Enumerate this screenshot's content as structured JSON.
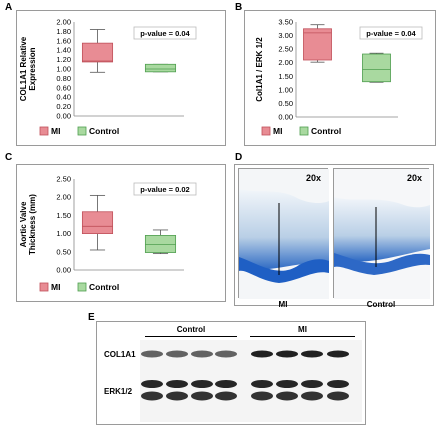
{
  "panels": {
    "A": {
      "letter": "A"
    },
    "B": {
      "letter": "B"
    },
    "C": {
      "letter": "C"
    },
    "D": {
      "letter": "D"
    },
    "E": {
      "letter": "E"
    }
  },
  "colors": {
    "mi": "#e88c94",
    "control": "#a9d9a0",
    "mi_stroke": "#c0505a",
    "control_stroke": "#4f9e4f"
  },
  "chart_data": [
    {
      "id": "A",
      "type": "box",
      "ylabel": "COL1A1 Relative Expression",
      "ylim": [
        0,
        2.0
      ],
      "yticks": [
        "0.00",
        "0.20",
        "0.40",
        "0.60",
        "0.80",
        "1.00",
        "1.20",
        "1.40",
        "1.60",
        "1.80",
        "2.00"
      ],
      "pvalue": "p-value = 0.04",
      "legend": [
        "MI",
        "Control"
      ],
      "series": [
        {
          "name": "MI",
          "min": 0.93,
          "q1": 1.15,
          "median": 1.17,
          "q3": 1.55,
          "max": 1.84
        },
        {
          "name": "Control",
          "min": 0.94,
          "q1": 0.94,
          "median": 1.0,
          "q3": 1.1,
          "max": 1.1
        }
      ]
    },
    {
      "id": "B",
      "type": "box",
      "ylabel": "Col1A1 / ERK 1/2",
      "ylim": [
        0,
        3.5
      ],
      "yticks": [
        "0.00",
        "0.50",
        "1.00",
        "1.50",
        "2.00",
        "2.50",
        "3.00",
        "3.50"
      ],
      "pvalue": "p-value = 0.04",
      "legend": [
        "MI",
        "Control"
      ],
      "series": [
        {
          "name": "MI",
          "min": 2.02,
          "q1": 2.1,
          "median": 3.1,
          "q3": 3.25,
          "max": 3.4
        },
        {
          "name": "Control",
          "min": 1.28,
          "q1": 1.3,
          "median": 1.75,
          "q3": 2.32,
          "max": 2.35
        }
      ]
    },
    {
      "id": "C",
      "type": "box",
      "ylabel": "Aortic Valve Thickness (mm)",
      "ylim": [
        0,
        2.5
      ],
      "yticks": [
        "0.00",
        "0.50",
        "1.00",
        "1.50",
        "2.00",
        "2.50"
      ],
      "pvalue": "p-value = 0.02",
      "legend": [
        "MI",
        "Control"
      ],
      "series": [
        {
          "name": "MI",
          "min": 0.55,
          "q1": 1.0,
          "median": 1.2,
          "q3": 1.6,
          "max": 2.05
        },
        {
          "name": "Control",
          "min": 0.45,
          "q1": 0.48,
          "median": 0.7,
          "q3": 0.95,
          "max": 1.1
        }
      ]
    }
  ],
  "micrographs": [
    {
      "magnification": "20x",
      "caption": "MI"
    },
    {
      "magnification": "20x",
      "caption": "Control"
    }
  ],
  "western_blot": {
    "group_labels": [
      "Control",
      "MI"
    ],
    "rows": [
      "COL1A1",
      "ERK1/2"
    ]
  }
}
